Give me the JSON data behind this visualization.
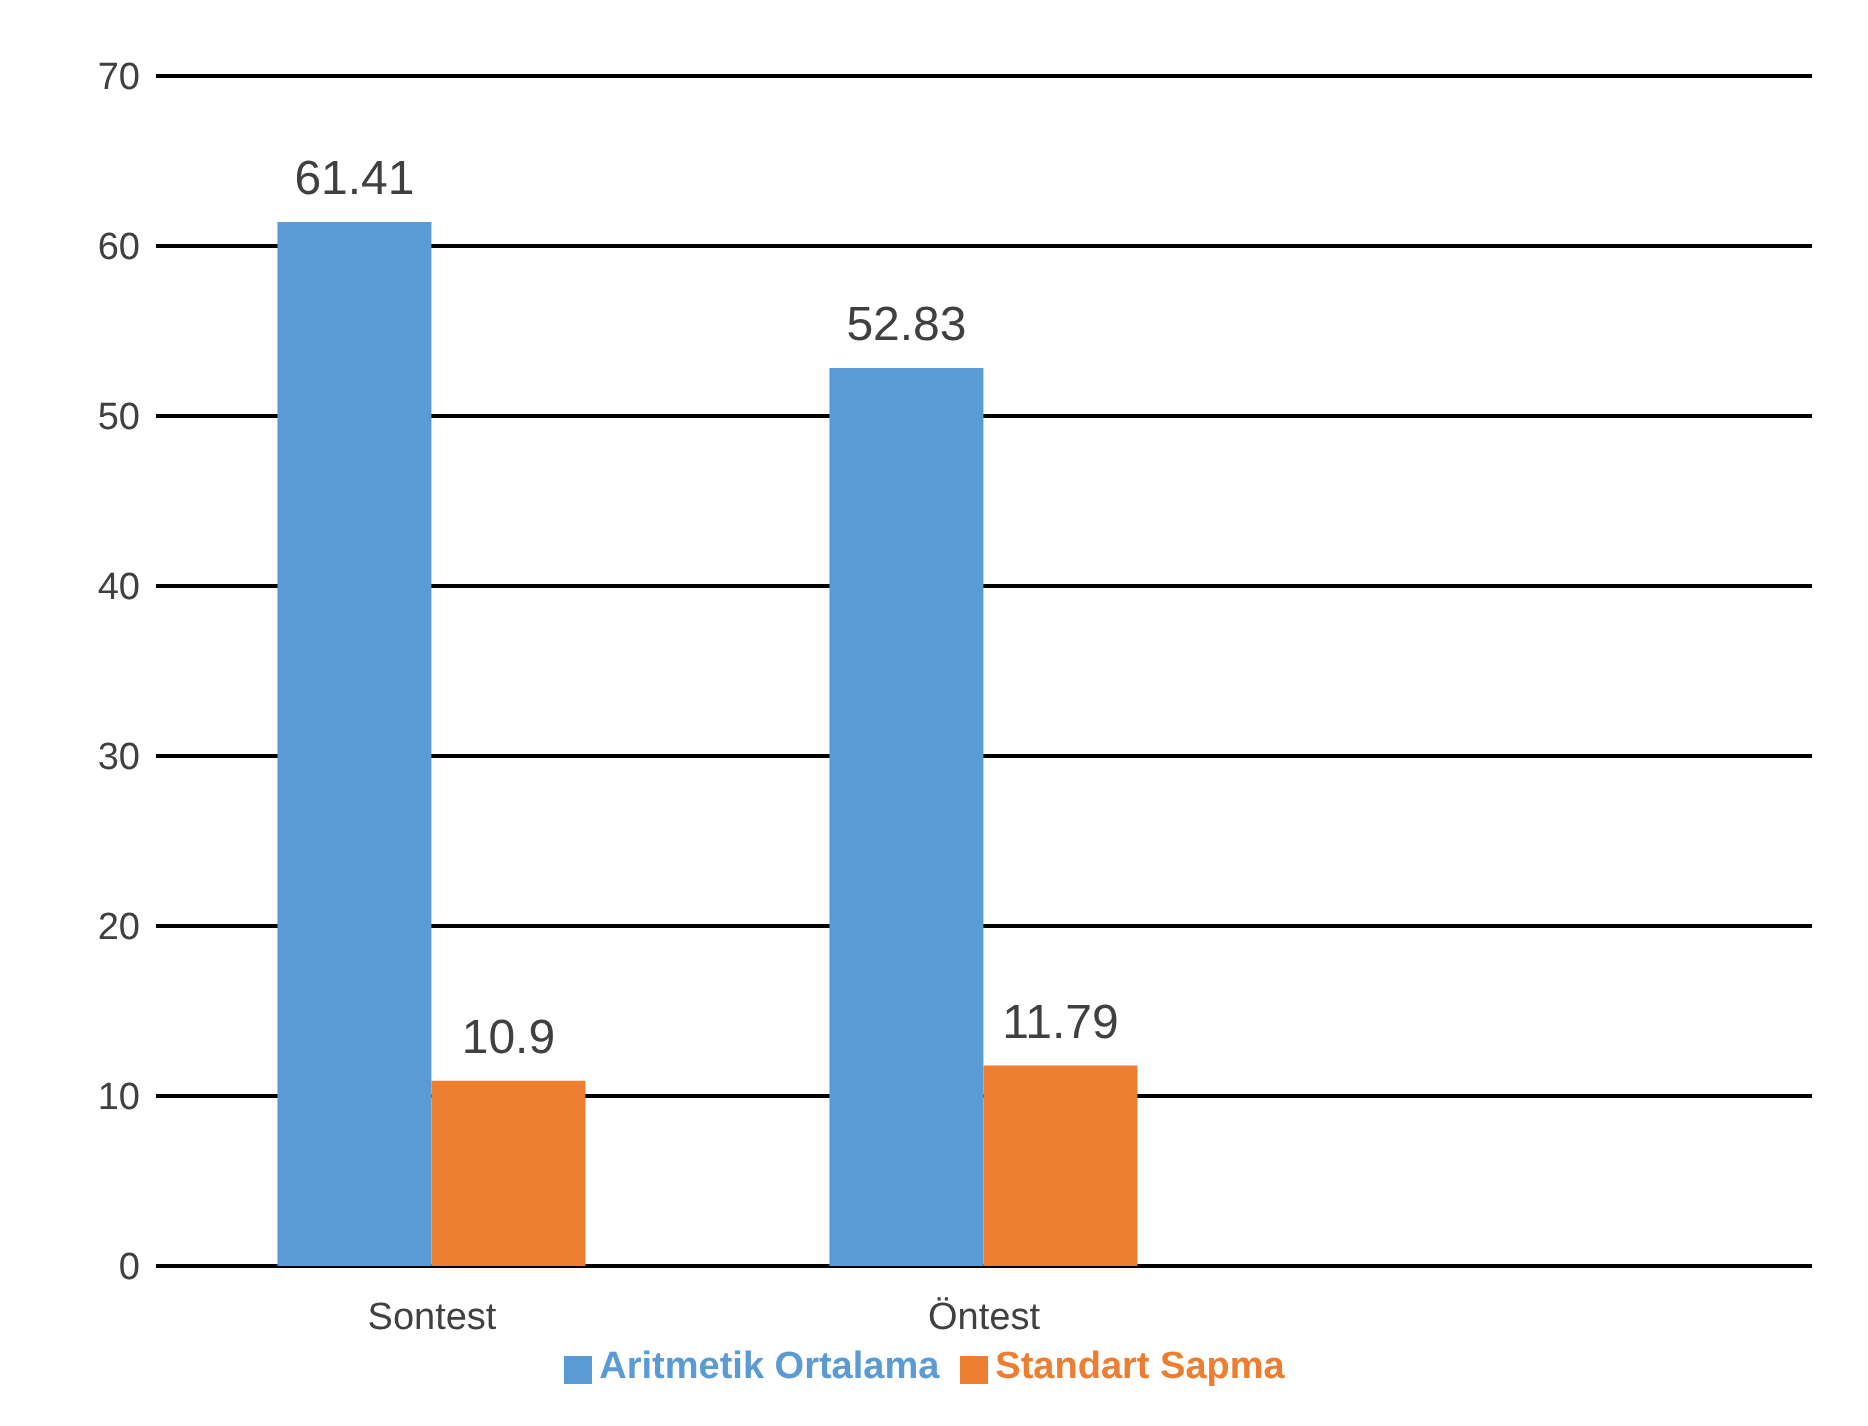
{
  "chart_data": {
    "type": "bar",
    "categories": [
      "Sontest",
      "Öntest",
      null
    ],
    "series": [
      {
        "name": "Aritmetik Ortalama",
        "color": "#5b9bd5",
        "values": [
          61.41,
          52.83,
          null
        ]
      },
      {
        "name": "Standart Sapma",
        "color": "#ed7d31",
        "values": [
          10.9,
          11.79,
          null
        ]
      }
    ],
    "ylim": [
      0,
      70
    ],
    "yticks": [
      0,
      10,
      20,
      30,
      40,
      50,
      60,
      70
    ],
    "grid": "y",
    "legend": "bottom",
    "data_labels": true
  }
}
